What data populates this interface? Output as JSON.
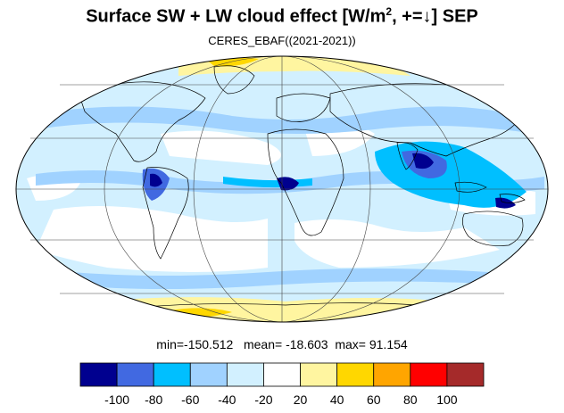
{
  "title": {
    "main": "Surface SW + LW cloud effect [W/m",
    "superscript": "2",
    "tail": ", +=↓]  SEP"
  },
  "subtitle": "CERES_EBAF((2021-2021))",
  "stats": {
    "min_label": "min=",
    "min_value": "-150.512",
    "mean_label": "mean=",
    "mean_value": "-18.603",
    "max_label": "max=",
    "max_value": "91.154"
  },
  "colorbar": {
    "colors": [
      "#00008f",
      "#4169e1",
      "#00bfff",
      "#a0d2ff",
      "#d2f0ff",
      "#ffffff",
      "#fff5a0",
      "#ffd700",
      "#ffa500",
      "#ff0000",
      "#a52a2a"
    ],
    "tick_labels": [
      "-100",
      "-80",
      "-60",
      "-40",
      "-20",
      "20",
      "40",
      "60",
      "80",
      "100"
    ]
  },
  "map": {
    "projection": "mollweide",
    "background_color": "#ffffff",
    "gridlines": true
  }
}
